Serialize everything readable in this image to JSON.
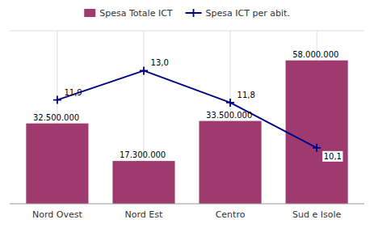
{
  "chart_data": {
    "type": "bar",
    "categories": [
      "Nord Ovest",
      "Nord Est",
      "Centro",
      "Sud e Isole"
    ],
    "series": [
      {
        "name": "Spesa Totale ICT",
        "type": "bar",
        "color": "#9E3A6E",
        "values": [
          32500000,
          17300000,
          33500000,
          58000000
        ],
        "value_labels": [
          "32.500.000",
          "17.300.000",
          "33.500.000",
          "58.000.000"
        ]
      },
      {
        "name": "Spesa ICT per abit.",
        "type": "line",
        "axis": "y2",
        "color": "#00008B",
        "marker": "plus",
        "values": [
          11.9,
          13.0,
          11.8,
          10.1
        ],
        "value_labels": [
          "11,9",
          "13,0",
          "11,8",
          "10,1"
        ]
      }
    ],
    "ylim": [
      0,
      70000000
    ],
    "y2lim": [
      8.0,
      14.5
    ],
    "data_labels": true,
    "tick_labels": "x",
    "grid": true,
    "legend": "top"
  }
}
